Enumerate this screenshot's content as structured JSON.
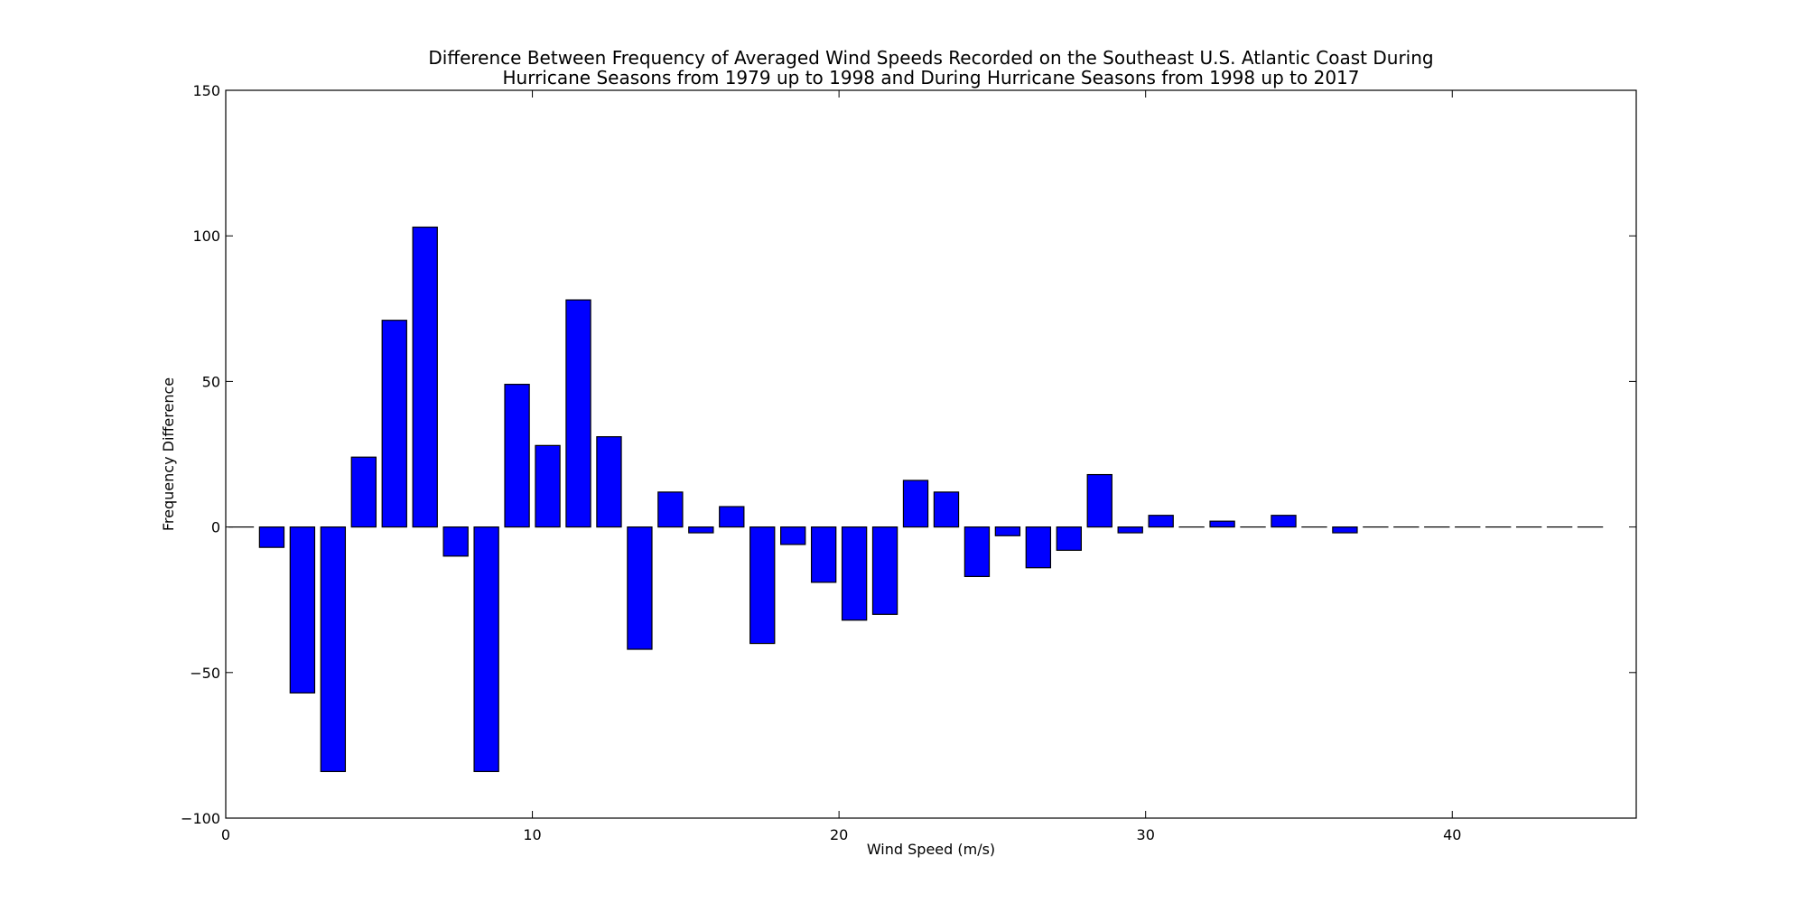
{
  "chart_data": {
    "type": "bar",
    "title_lines": [
      "Difference Between Frequency of Averaged Wind Speeds Recorded on the Southeast U.S. Atlantic Coast During",
      "Hurricane Seasons from 1979 up to 1998 and During Hurricane Seasons from 1998 up to 2017"
    ],
    "xlabel": "Wind Speed (m/s)",
    "ylabel": "Frequency Difference",
    "xlim": [
      0,
      46
    ],
    "ylim": [
      -100,
      150
    ],
    "x_ticks": [
      0,
      10,
      20,
      30,
      40
    ],
    "x_tick_labels": [
      "0",
      "10",
      "20",
      "30",
      "40"
    ],
    "y_ticks": [
      -100,
      -50,
      0,
      50,
      100,
      150
    ],
    "y_tick_labels": [
      "−100",
      "−50",
      "0",
      "50",
      "100",
      "150"
    ],
    "bar_color": "#0000ff",
    "bar_edge_color": "#000000",
    "grid": false,
    "x": [
      0,
      1,
      2,
      3,
      4,
      5,
      6,
      7,
      8,
      9,
      10,
      11,
      12,
      13,
      14,
      15,
      16,
      17,
      18,
      19,
      20,
      21,
      22,
      23,
      24,
      25,
      26,
      27,
      28,
      29,
      30,
      31,
      32,
      33,
      34,
      35,
      36,
      37,
      38,
      39,
      40,
      41,
      42,
      43,
      44
    ],
    "values": [
      0,
      -7,
      -57,
      -84,
      24,
      71,
      103,
      -10,
      -84,
      49,
      28,
      78,
      31,
      -42,
      12,
      -2,
      7,
      -40,
      -6,
      -19,
      -32,
      -30,
      16,
      12,
      -17,
      -3,
      -14,
      -8,
      18,
      -2,
      4,
      0,
      2,
      0,
      4,
      0,
      -2,
      0,
      0,
      0,
      0,
      0,
      0,
      0,
      0
    ]
  }
}
